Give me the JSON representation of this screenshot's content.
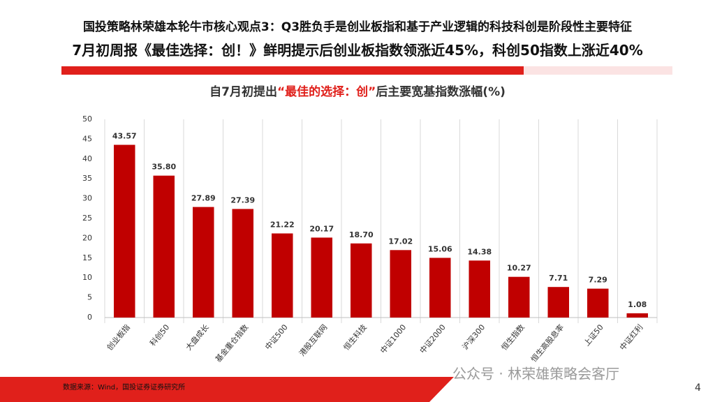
{
  "header": {
    "title": "国投策略林荣雄本轮牛市核心观点3：Q3胜负手是创业板指和基于产业逻辑的科技科创是阶段性主要特征",
    "subtitle": "7月初周报《最佳选择：创！》鲜明提示后创业板指数领涨近45%，科创50指数上涨近40%"
  },
  "chart_data": {
    "type": "bar",
    "title": [
      "自7月初提出",
      "“最佳的选择：创”",
      "后主要宽基指数涨幅(%)"
    ],
    "categories": [
      "创业板指",
      "科创50",
      "大盘成长",
      "基金重仓指数",
      "中证500",
      "港股互联网",
      "恒生科技",
      "中证1000",
      "中证2000",
      "沪深300",
      "恒生指数",
      "恒生高股息率",
      "上证50",
      "中证红利"
    ],
    "values": [
      43.57,
      35.8,
      27.89,
      27.39,
      21.22,
      20.17,
      18.7,
      17.02,
      15.06,
      14.38,
      10.27,
      7.71,
      7.29,
      1.08
    ],
    "value_labels": [
      "43.57",
      "35.80",
      "27.89",
      "27.39",
      "21.22",
      "20.17",
      "18.70",
      "17.02",
      "15.06",
      "14.38",
      "10.27",
      "7.71",
      "7.29",
      "1.08"
    ],
    "color": "#c00000",
    "ylim": [
      0,
      50
    ],
    "yticks": [
      0,
      5,
      10,
      15,
      20,
      25,
      30,
      35,
      40,
      45,
      50
    ]
  },
  "footer": {
    "source": "数据来源：Wind，国投证券证券研究所",
    "watermark": "公众号 · 林荣雄策略会客厅",
    "page": "4"
  }
}
